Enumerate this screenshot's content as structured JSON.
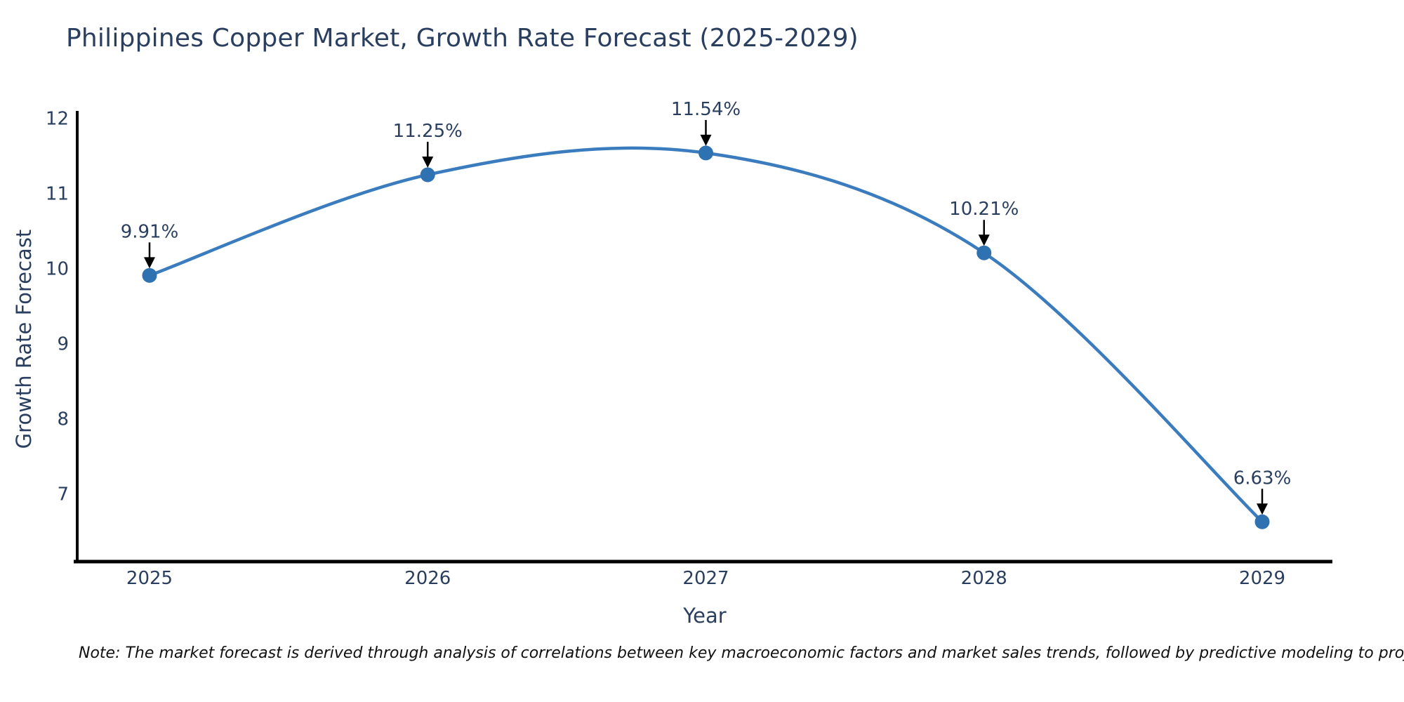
{
  "chart_data": {
    "type": "line",
    "title": "Philippines Copper Market, Growth Rate Forecast (2025-2029)",
    "xlabel": "Year",
    "ylabel": "Growth Rate Forecast",
    "categories": [
      "2025",
      "2026",
      "2027",
      "2028",
      "2029"
    ],
    "series": [
      {
        "name": "Growth Rate Forecast",
        "values": [
          9.91,
          11.25,
          11.54,
          10.21,
          6.63
        ]
      }
    ],
    "point_labels": [
      "9.91%",
      "11.25%",
      "11.54%",
      "10.21%",
      "6.63%"
    ],
    "y_ticks": [
      7,
      8,
      9,
      10,
      11,
      12
    ],
    "ylim": [
      6.1,
      12.1
    ],
    "line_shape": "spline",
    "grid": false,
    "legend": "none",
    "colors": {
      "line": "#3a7cbd",
      "marker": "#2e72b1",
      "annotation_text": "#2a3f5f",
      "annotation_arrow": "#000000",
      "tick_text": "#2a3f5f",
      "axis_line": "#000000",
      "background": "#ffffff"
    }
  },
  "note": {
    "text": "Note: The market forecast is derived through analysis of correlations between key macroeconomic factors and market sales trends, followed by predictive modeling to project future sales"
  }
}
